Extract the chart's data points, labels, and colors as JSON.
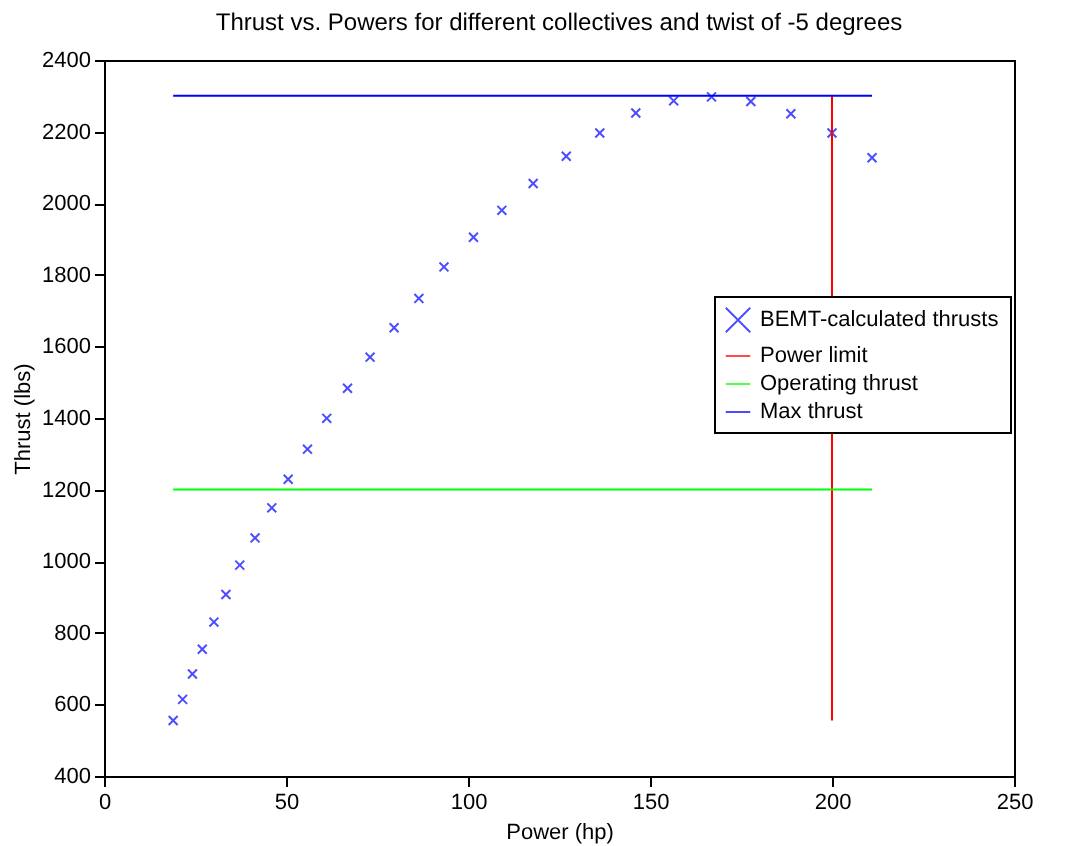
{
  "chart_data": {
    "type": "scatter",
    "title": "Thrust vs. Powers for different collectives and twist of -5 degrees",
    "xlabel": "Power (hp)",
    "ylabel": "Thrust (lbs)",
    "xlim": [
      0,
      250
    ],
    "xticks": [
      0,
      50,
      100,
      150,
      200,
      250
    ],
    "ylim": [
      400,
      2400
    ],
    "yticks": [
      400,
      600,
      800,
      1000,
      1200,
      1400,
      1600,
      1800,
      2000,
      2200,
      2400
    ],
    "grid": false,
    "legend": "right",
    "series": [
      {
        "name": "BEMT-calculated thrusts",
        "type": "scatter",
        "marker": "cross",
        "color": "#0000ff",
        "x": [
          19.0,
          21.6,
          24.3,
          27.0,
          30.2,
          33.5,
          37.3,
          41.5,
          46.1,
          50.6,
          55.9,
          61.2,
          66.9,
          73.1,
          79.7,
          86.5,
          93.4,
          101.5,
          109.3,
          117.9,
          127.0,
          136.2,
          146.1,
          156.5,
          166.9,
          177.7,
          188.7,
          200.0,
          211.0
        ],
        "values": [
          555,
          614,
          685,
          754,
          830,
          907,
          989,
          1065,
          1149,
          1229,
          1313,
          1399,
          1483,
          1570,
          1652,
          1734,
          1822,
          1905,
          1980,
          2055,
          2131,
          2196,
          2252,
          2286,
          2297,
          2284,
          2250,
          2196,
          2127
        ]
      },
      {
        "name": "Power limit",
        "type": "line",
        "color": "#ff0000",
        "x": [
          200,
          200
        ],
        "values": [
          555,
          2300
        ]
      },
      {
        "name": "Operating thrust",
        "type": "line",
        "color": "#00ff00",
        "x": [
          19,
          211
        ],
        "values": [
          1200,
          1200
        ]
      },
      {
        "name": "Max thrust",
        "type": "line",
        "color": "#0000ff",
        "x": [
          19,
          211
        ],
        "values": [
          2300,
          2300
        ]
      }
    ]
  }
}
